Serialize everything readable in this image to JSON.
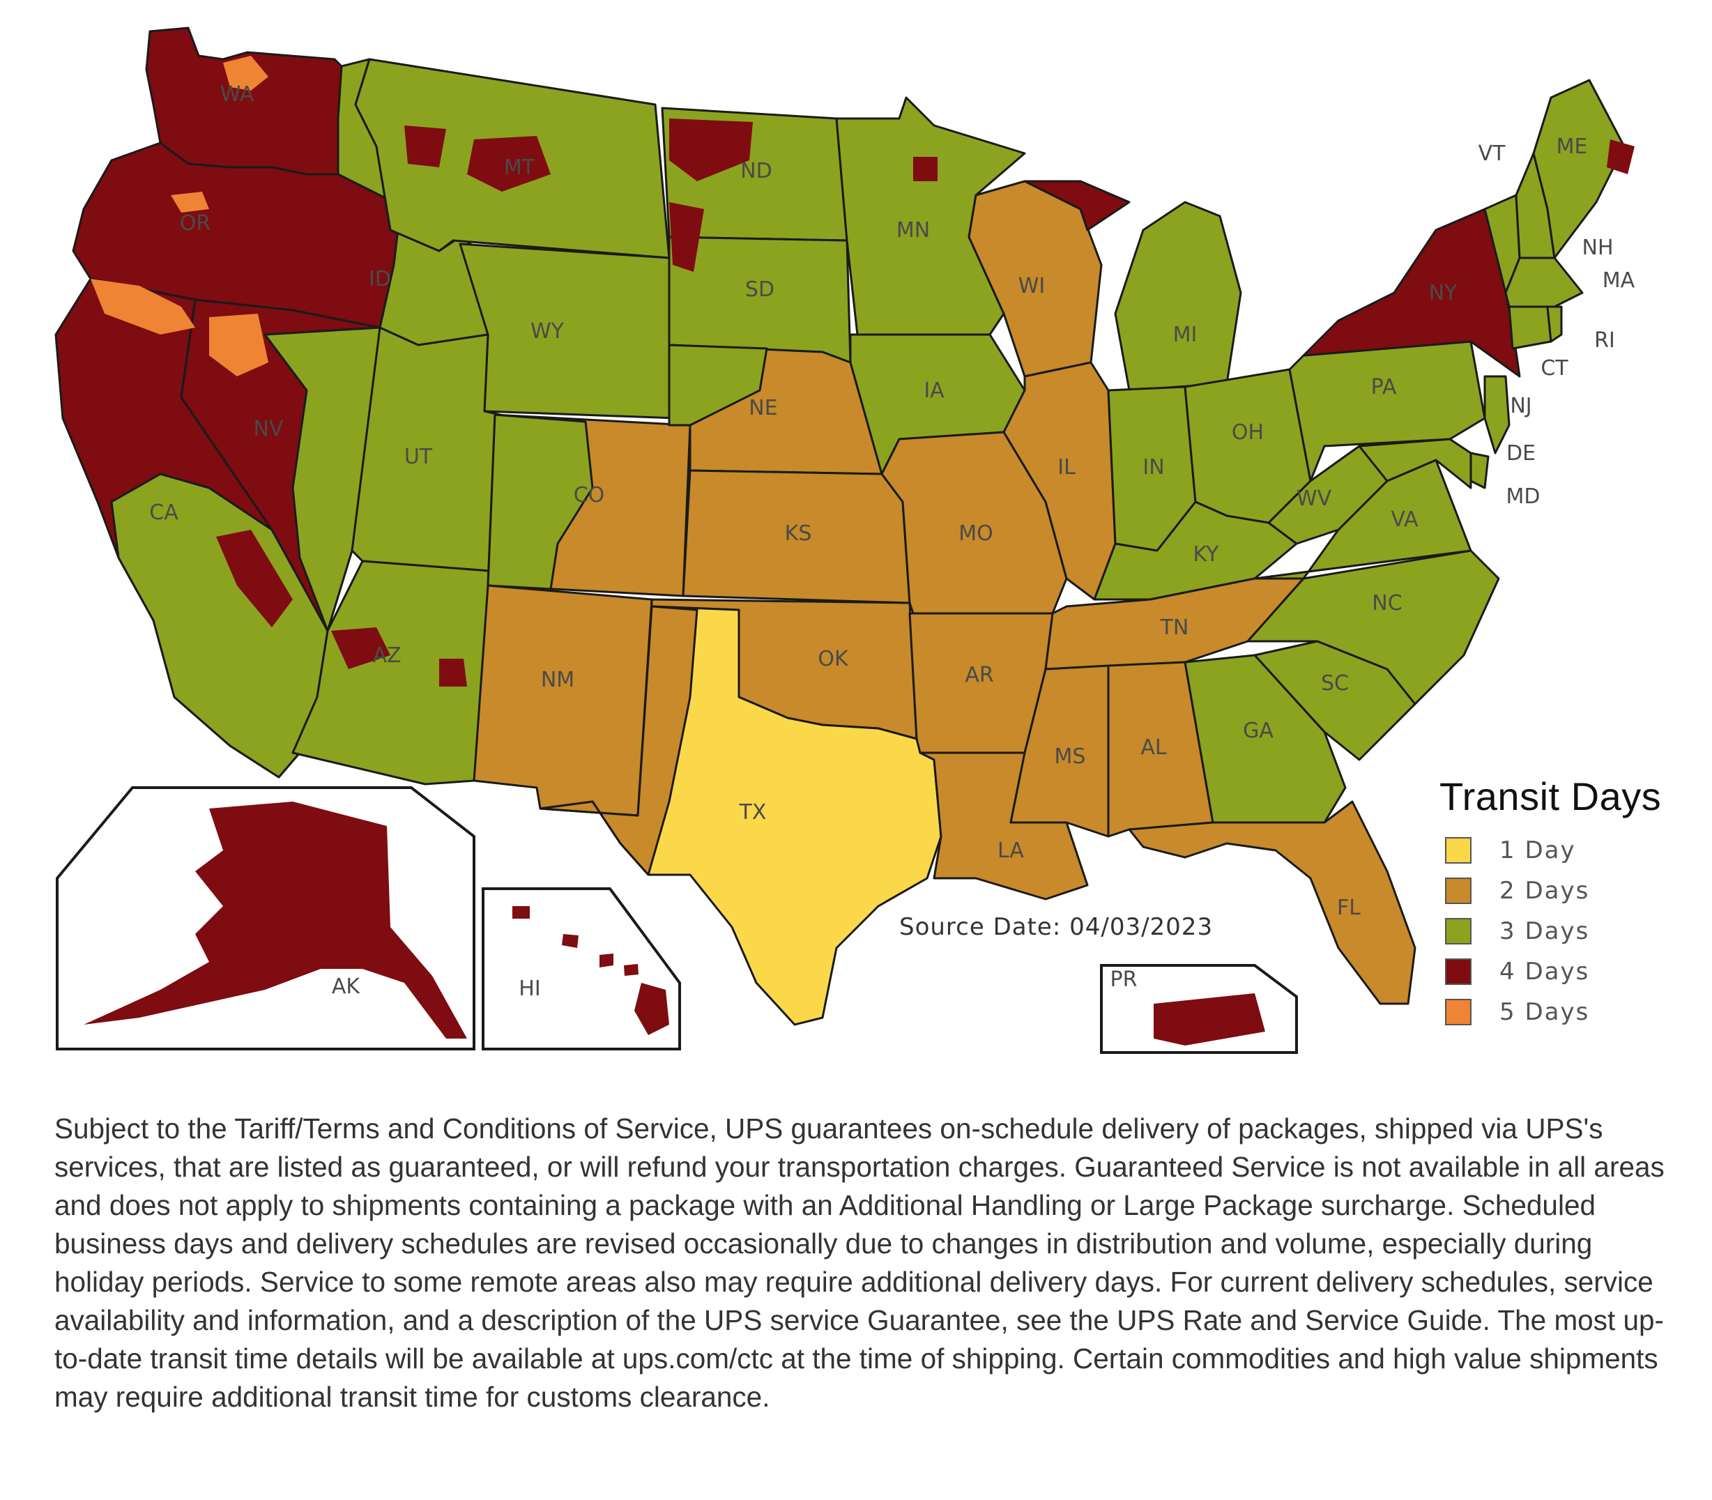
{
  "map": {
    "state_labels": [
      "WA",
      "OR",
      "CA",
      "ID",
      "NV",
      "MT",
      "WY",
      "UT",
      "AZ",
      "CO",
      "NM",
      "ND",
      "SD",
      "NE",
      "KS",
      "OK",
      "TX",
      "MN",
      "IA",
      "MO",
      "AR",
      "LA",
      "WI",
      "IL",
      "MI",
      "IN",
      "OH",
      "KY",
      "TN",
      "MS",
      "AL",
      "GA",
      "FL",
      "SC",
      "NC",
      "VA",
      "WV",
      "PA",
      "NY",
      "VT",
      "ME",
      "NH",
      "MA",
      "RI",
      "CT",
      "NJ",
      "DE",
      "MD",
      "AK",
      "HI",
      "PR"
    ],
    "source": "Source Date: 04/03/2023"
  },
  "colors": {
    "1": "#fad84a",
    "2": "#c88a2a",
    "3": "#8ca31f",
    "4": "#7e0c10",
    "5": "#ee8434"
  },
  "legend": {
    "title": "Transit Days",
    "items": [
      {
        "days": 1,
        "label": "1 Day"
      },
      {
        "days": 2,
        "label": "2 Days"
      },
      {
        "days": 3,
        "label": "3 Days"
      },
      {
        "days": 4,
        "label": "4 Days"
      },
      {
        "days": 5,
        "label": "5 Days"
      }
    ]
  },
  "disclaimer": "Subject to the Tariff/Terms and Conditions of Service, UPS guarantees on-schedule delivery of packages, shipped via UPS's services, that are listed as guaranteed, or will refund your transportation charges. Guaranteed Service is not available in all areas and does not apply to shipments containing a package with an Additional Handling or Large Package surcharge. Scheduled business days and delivery schedules are revised occasionally due to changes in distribution and volume, especially during holiday periods. Service to some remote areas also may require additional delivery days. For current delivery schedules, service availability and information, and a description of the UPS service Guarantee, see the UPS Rate and Service Guide. The most up-to-date transit time details will be available at ups.com/ctc at the time of shipping. Certain commodities and high value shipments may require additional transit time for customs clearance."
}
